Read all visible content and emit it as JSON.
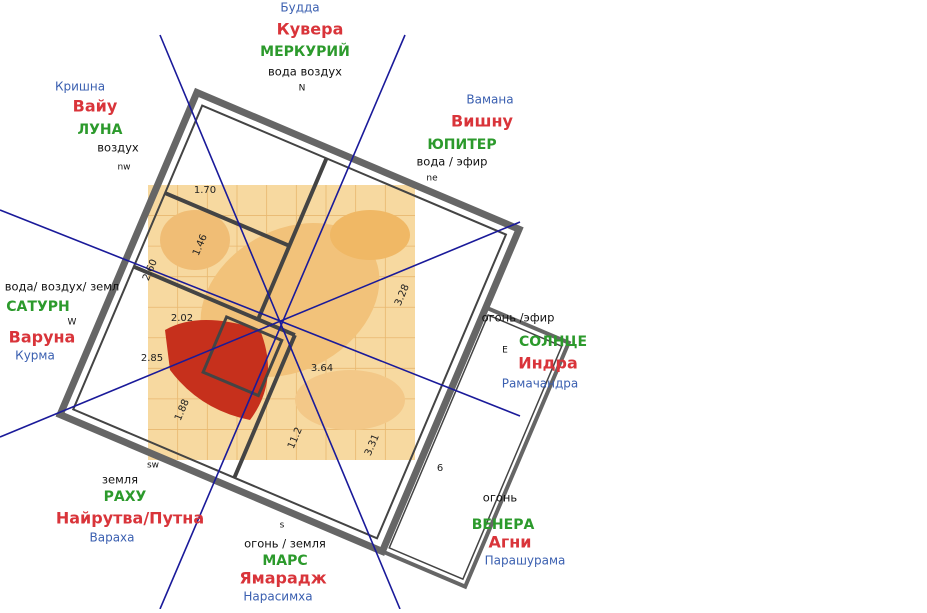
{
  "directions": {
    "n": {
      "avatar": "Будда",
      "deity": "Кувера",
      "planet": "МЕРКУРИЙ",
      "element": "вода воздух",
      "code": "N"
    },
    "nw": {
      "avatar": "Кришна",
      "deity": "Вайу",
      "planet": "ЛУНА",
      "element": "воздух",
      "code": "nw"
    },
    "ne": {
      "avatar": "Вамана",
      "deity": "Вишну",
      "planet": "ЮПИТЕР",
      "element": "вода / эфир",
      "code": "ne"
    },
    "w": {
      "element": "вода/ воздух/ земл",
      "planet": "САТУРН",
      "code": "W",
      "deity": "Варуна",
      "avatar": "Курма"
    },
    "e": {
      "element": "огонь /эфир",
      "code": "E",
      "planet": "СОЛНЦЕ",
      "deity": "Индра",
      "avatar": "Рамачандра"
    },
    "sw": {
      "code": "sw",
      "element": "земля",
      "planet": "РАХУ",
      "deity": "Найрутва/Путна",
      "avatar": "Вараха"
    },
    "s": {
      "code": "s",
      "element": "огонь / земля",
      "planet": "МАРС",
      "deity": "Ямарадж",
      "avatar": "Нарасимха"
    },
    "se": {
      "element": "огонь",
      "planet": "ВЕНЕРА",
      "deity": "Агни",
      "avatar": "Парашурама"
    }
  },
  "plan_labels": [
    "1.70",
    "1.46",
    "2.60",
    "2.02",
    "2.85",
    "3.64",
    "3.28",
    "3.31",
    "1.88",
    "11.2",
    "6"
  ]
}
